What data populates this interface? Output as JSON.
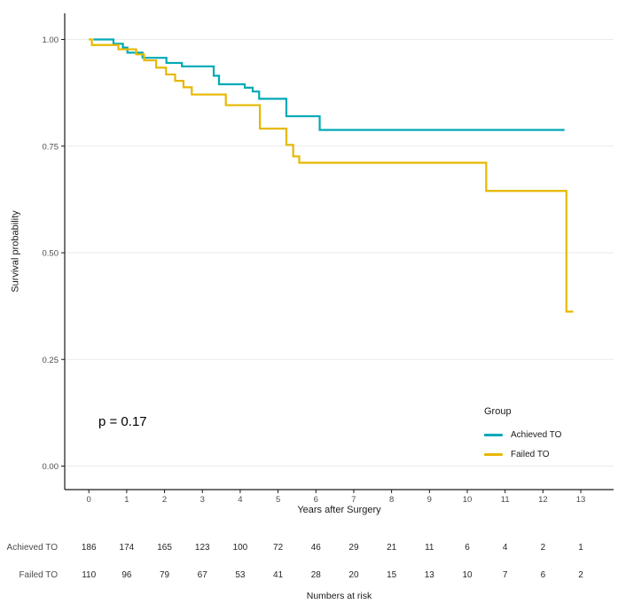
{
  "chart_data": {
    "type": "line",
    "variant": "kaplan_meier_step",
    "title": "",
    "xlabel": "Years after Surgery",
    "ylabel": "Survival probability",
    "xlim": [
      0,
      13
    ],
    "ylim": [
      0,
      1
    ],
    "x_ticks": [
      0,
      1,
      2,
      3,
      4,
      5,
      6,
      7,
      8,
      9,
      10,
      11,
      12,
      13
    ],
    "x_tick_labels": [
      "0",
      "1",
      "2",
      "3",
      "4",
      "5",
      "6",
      "7",
      "8",
      "9",
      "10",
      "11",
      "12",
      "13"
    ],
    "y_ticks": [
      0,
      0.25,
      0.5,
      0.75,
      1
    ],
    "y_tick_labels": [
      "0.00",
      "0.25",
      "0.50",
      "0.75",
      "1.00"
    ],
    "grid": "horizontal major gridlines only",
    "legend_position": "right-bottom",
    "series": [
      {
        "name": "Achieved TO",
        "color": "#00A9B6",
        "end_x": 12.57,
        "points": [
          [
            0.12,
            1.0
          ],
          [
            0.65,
            0.99
          ],
          [
            0.9,
            0.981
          ],
          [
            1.02,
            0.969
          ],
          [
            1.42,
            0.957
          ],
          [
            2.05,
            0.945
          ],
          [
            2.46,
            0.937
          ],
          [
            3.3,
            0.915
          ],
          [
            3.44,
            0.895
          ],
          [
            4.12,
            0.887
          ],
          [
            4.33,
            0.878
          ],
          [
            4.5,
            0.861
          ],
          [
            5.22,
            0.82
          ],
          [
            6.1,
            0.788
          ]
        ]
      },
      {
        "name": "Failed TO",
        "color": "#E7B800",
        "end_x": 12.8,
        "points": [
          [
            0.0,
            1.0
          ],
          [
            0.08,
            0.987
          ],
          [
            0.78,
            0.977
          ],
          [
            1.25,
            0.965
          ],
          [
            1.46,
            0.951
          ],
          [
            1.78,
            0.934
          ],
          [
            2.04,
            0.918
          ],
          [
            2.28,
            0.903
          ],
          [
            2.5,
            0.888
          ],
          [
            2.72,
            0.871
          ],
          [
            3.62,
            0.846
          ],
          [
            4.52,
            0.791
          ],
          [
            5.22,
            0.753
          ],
          [
            5.4,
            0.726
          ],
          [
            5.56,
            0.711
          ],
          [
            10.5,
            0.645
          ],
          [
            12.62,
            0.362
          ]
        ]
      }
    ],
    "annotations": {
      "p_value": "p = 0.17"
    }
  },
  "legend": {
    "title": "Group",
    "items": [
      {
        "label": "Achieved TO",
        "color": "#00A9B6"
      },
      {
        "label": "Failed TO",
        "color": "#E7B800"
      }
    ]
  },
  "risk_table": {
    "caption": "Numbers at risk",
    "rows": [
      {
        "label": "Achieved TO",
        "values": [
          186,
          174,
          165,
          123,
          100,
          72,
          46,
          29,
          21,
          11,
          6,
          4,
          2,
          1
        ]
      },
      {
        "label": "Failed TO",
        "values": [
          110,
          96,
          79,
          67,
          53,
          41,
          28,
          20,
          15,
          13,
          10,
          7,
          6,
          2
        ]
      }
    ]
  },
  "colors": {
    "achieved_to": "#00A9B6",
    "failed_to": "#E7B800",
    "gridline": "#EBEBEB",
    "axis_line": "#1A1A1A",
    "tick_label": "#4D4D4D"
  }
}
